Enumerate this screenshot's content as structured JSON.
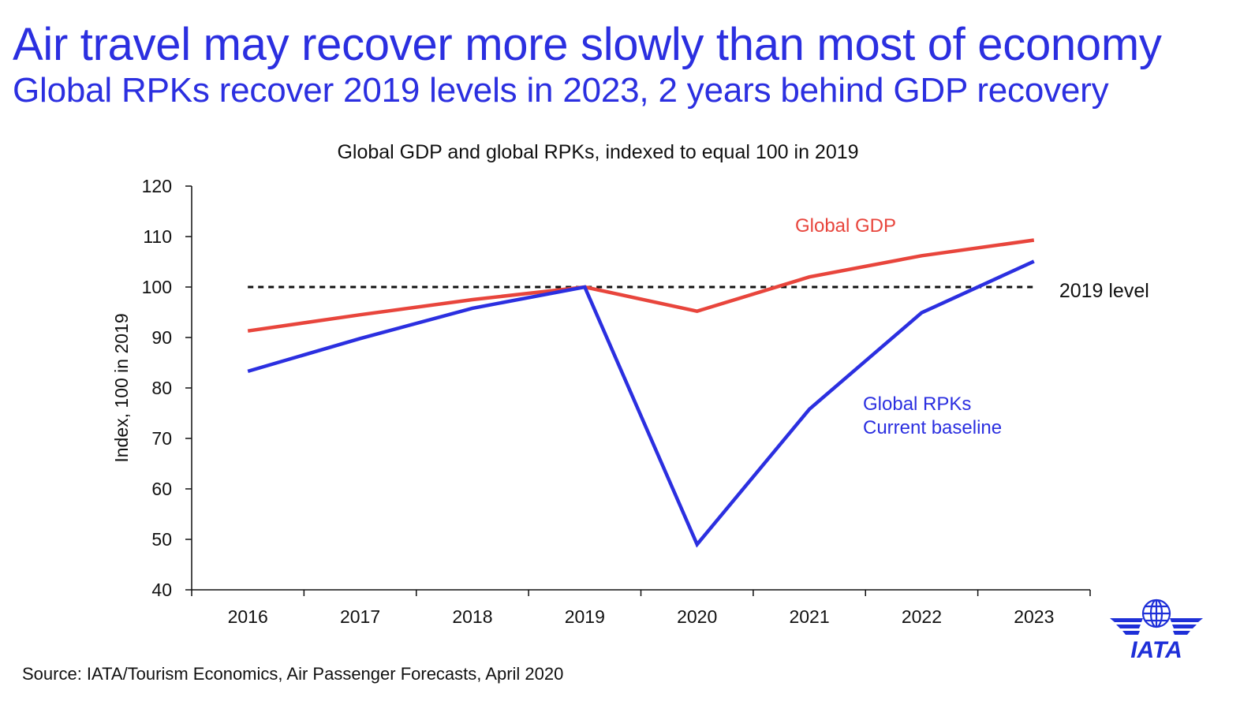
{
  "header": {
    "title": "Air travel may recover more slowly than most of economy",
    "subtitle": "Global RPKs recover 2019 levels in 2023, 2 years behind GDP recovery"
  },
  "footer": {
    "source": "Source: IATA/Tourism Economics, Air Passenger Forecasts, April 2020"
  },
  "logo": {
    "text": "IATA",
    "icon": "iata-globe-wings-icon",
    "color": "#1e2fd8"
  },
  "chart_data": {
    "type": "line",
    "title": "Global GDP and global RPKs, indexed to equal 100 in 2019",
    "xlabel": "",
    "ylabel": "Index, 100 in 2019",
    "x": [
      "2016",
      "2017",
      "2018",
      "2019",
      "2020",
      "2021",
      "2022",
      "2023"
    ],
    "ylim": [
      40,
      120
    ],
    "yticks": [
      40,
      50,
      60,
      70,
      80,
      90,
      100,
      110,
      120
    ],
    "grid": false,
    "series": [
      {
        "name": "Global GDP",
        "color": "#e8453c",
        "values": [
          91.3,
          94.5,
          97.5,
          100,
          95.2,
          102,
          106.2,
          109.3
        ]
      },
      {
        "name": "Global RPKs\nCurrent baseline",
        "label_lines": [
          "Global RPKs",
          "Current baseline"
        ],
        "color": "#2b2fe0",
        "values": [
          83.3,
          89.8,
          95.8,
          100,
          49,
          75.8,
          94.9,
          105.1
        ]
      }
    ],
    "reference_line": {
      "label": "2019 level",
      "value": 100,
      "style": "dashed",
      "color": "#111111"
    }
  }
}
